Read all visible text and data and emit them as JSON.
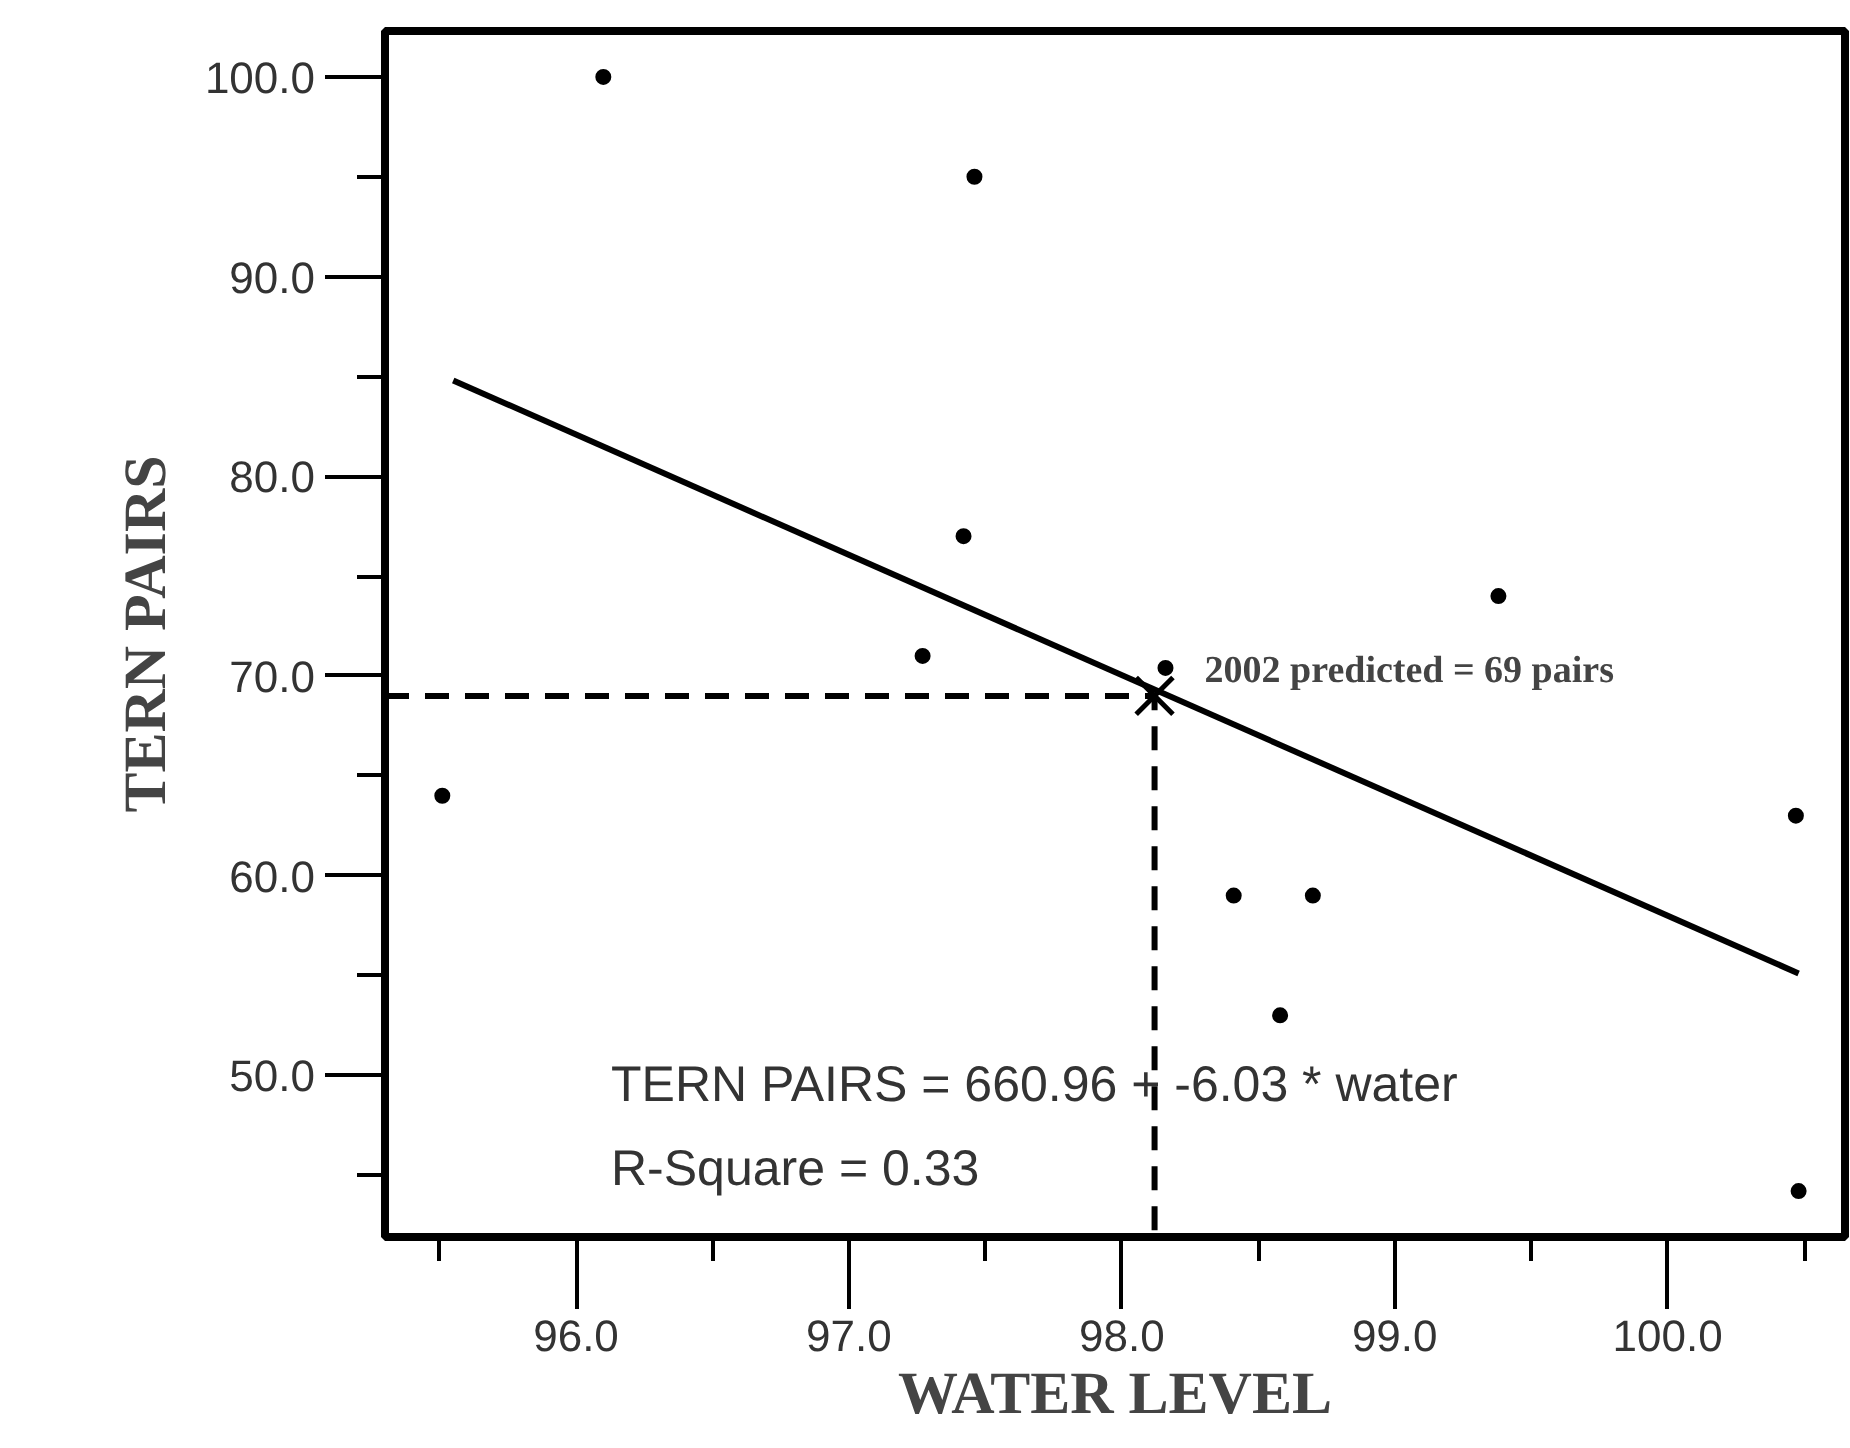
{
  "chart_data": {
    "type": "scatter",
    "xlabel": "WATER LEVEL",
    "ylabel": "TERN PAIRS",
    "xlim": [
      95.3,
      100.65
    ],
    "ylim": [
      41.9,
      102.3
    ],
    "xticks": [
      {
        "value": 95.5,
        "label": null
      },
      {
        "value": 96,
        "label": "96.0"
      },
      {
        "value": 96.5,
        "label": null
      },
      {
        "value": 97,
        "label": "97.0"
      },
      {
        "value": 97.5,
        "label": null
      },
      {
        "value": 98,
        "label": "98.0"
      },
      {
        "value": 98.5,
        "label": null
      },
      {
        "value": 99,
        "label": "99.0"
      },
      {
        "value": 99.5,
        "label": null
      },
      {
        "value": 100,
        "label": "100.0"
      },
      {
        "value": 100.5,
        "label": null
      }
    ],
    "yticks": [
      {
        "value": 45,
        "label": null
      },
      {
        "value": 50,
        "label": "50.0"
      },
      {
        "value": 55,
        "label": null
      },
      {
        "value": 60,
        "label": "60.0"
      },
      {
        "value": 65,
        "label": null
      },
      {
        "value": 70,
        "label": "70.0"
      },
      {
        "value": 75,
        "label": null
      },
      {
        "value": 80,
        "label": "80.0"
      },
      {
        "value": 85,
        "label": null
      },
      {
        "value": 90,
        "label": "90.0"
      },
      {
        "value": 95,
        "label": null
      },
      {
        "value": 100,
        "label": "100.0"
      }
    ],
    "grid": false,
    "series": [
      {
        "marker": "circle",
        "color": "#000000",
        "x": [
          96.1,
          97.46,
          97.42,
          97.27,
          95.51,
          99.38,
          98.41,
          98.7,
          98.58,
          100.47,
          100.48,
          98.16
        ],
        "values": [
          100.0,
          95.0,
          77.0,
          71.0,
          64.0,
          74.0,
          59.0,
          59.0,
          53.0,
          63.0,
          44.2,
          70.4
        ]
      },
      {
        "type": "line",
        "line_style": "solid",
        "color": "#000000",
        "x": [
          95.55,
          100.48
        ],
        "values": [
          84.8,
          55.1
        ]
      },
      {
        "type": "line",
        "line_style": "dashed",
        "color": "#000000",
        "x": [
          95.3,
          98.12,
          98.12
        ],
        "values": [
          69,
          69,
          41.9
        ]
      },
      {
        "marker": "cross",
        "color": "#000000",
        "x": [
          98.12
        ],
        "values": [
          69
        ]
      }
    ],
    "annotations": [
      {
        "text": "2002 predicted = 69 pairs",
        "x": 98.12,
        "y": 69
      },
      "TERN PAIRS = 660.96 + -6.03 * water",
      "R-Square = 0.33"
    ]
  }
}
